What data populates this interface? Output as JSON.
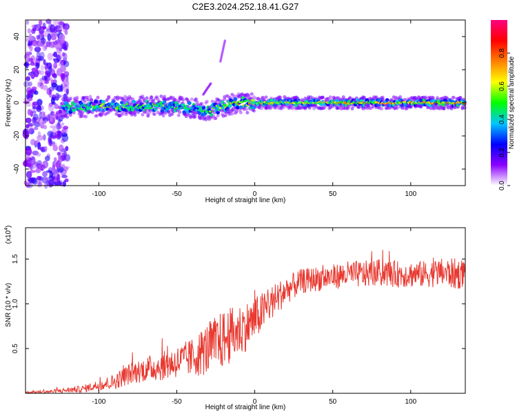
{
  "page": {
    "title": "C2E3.2024.252.18.41.G27"
  },
  "chart_data": [
    {
      "type": "heatmap",
      "title": "C2E3.2024.252.18.41.G27",
      "xlabel": "Height of straight line (km)",
      "ylabel": "Frequency (Hz)",
      "xlim": [
        -147,
        135
      ],
      "ylim": [
        -50,
        50
      ],
      "x_ticks": [
        -100,
        -50,
        0,
        50,
        100
      ],
      "x_tick_labels": [
        "-100",
        "-50",
        "0",
        "50",
        "100"
      ],
      "y_ticks": [
        -40,
        -20,
        0,
        20,
        40
      ],
      "y_tick_labels": [
        "-40",
        "-20",
        "0",
        "20",
        "40"
      ],
      "colorbar": {
        "label": "Normalized spectral amplitude",
        "range": [
          0,
          1
        ],
        "ticks": [
          0.0,
          0.2,
          0.4,
          0.6,
          0.8
        ],
        "tick_labels": [
          "0.0",
          "0.2",
          "0.4",
          "0.6",
          "0.8"
        ],
        "colormap": [
          "#ffffff",
          "#8a00ff",
          "#0000ff",
          "#00c8ff",
          "#00ff00",
          "#ffff00",
          "#ff8000",
          "#ff0000",
          "#ff0080"
        ]
      },
      "ridge": {
        "x": [
          -147,
          -120,
          -100,
          -80,
          -60,
          -40,
          -30,
          -20,
          -10,
          0,
          20,
          40,
          60,
          80,
          100,
          120,
          135
        ],
        "center_freq": [
          -3,
          -3,
          -2,
          -2,
          -2,
          -3,
          -5,
          -2,
          0,
          0,
          0,
          0,
          0,
          0,
          0,
          0,
          0
        ],
        "peak_amplitude": [
          0.3,
          0.5,
          0.6,
          0.6,
          0.55,
          0.5,
          0.55,
          0.7,
          0.8,
          0.75,
          0.7,
          0.75,
          0.8,
          0.75,
          0.8,
          0.85,
          0.8
        ]
      },
      "noise_region_x": [
        -147,
        -120
      ],
      "grid": false,
      "legend": "colorbar-right"
    },
    {
      "type": "line",
      "title": "",
      "xlabel": "Height of straight line (km)",
      "ylabel": "SNR (10 * v/v)",
      "y_exponent_label": "(x10",
      "y_exponent_power": "4",
      "y_exponent_close": ")",
      "xlim": [
        -147,
        135
      ],
      "ylim": [
        0,
        18500
      ],
      "x_ticks": [
        -100,
        -50,
        0,
        50,
        100
      ],
      "x_tick_labels": [
        "-100",
        "-50",
        "0",
        "50",
        "100"
      ],
      "y_ticks": [
        5000,
        10000,
        15000
      ],
      "y_tick_labels": [
        "0.5",
        "1.0",
        "1.5"
      ],
      "color": "#e8382f",
      "envelope": {
        "x": [
          -147,
          -130,
          -110,
          -100,
          -90,
          -80,
          -70,
          -60,
          -50,
          -40,
          -30,
          -20,
          -10,
          0,
          10,
          20,
          30,
          40,
          50,
          60,
          70,
          80,
          90,
          100,
          110,
          120,
          130,
          135
        ],
        "mean": [
          100,
          200,
          500,
          900,
          1300,
          2200,
          2700,
          3000,
          3500,
          4000,
          5000,
          6000,
          7000,
          8200,
          10000,
          11500,
          12500,
          12800,
          13000,
          13300,
          13300,
          13500,
          13300,
          13300,
          13300,
          13500,
          13300,
          13500
        ],
        "spread": [
          100,
          200,
          400,
          600,
          900,
          1200,
          1400,
          1600,
          1800,
          2200,
          3000,
          3300,
          3000,
          2500,
          2000,
          1600,
          1400,
          1400,
          1400,
          1500,
          1500,
          1500,
          1500,
          1500,
          1500,
          1600,
          1800,
          1500
        ]
      },
      "grid": false,
      "legend": "none"
    }
  ]
}
